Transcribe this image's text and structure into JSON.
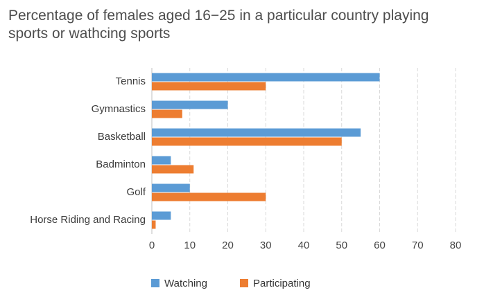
{
  "chart_data": {
    "type": "bar",
    "orientation": "horizontal",
    "title": "Percentage of females aged 16−25 in a particular country playing sports or wathcing sports",
    "categories": [
      "Tennis",
      "Gymnastics",
      "Basketball",
      "Badminton",
      "Golf",
      "Horse Riding and Racing"
    ],
    "series": [
      {
        "name": "Watching",
        "values": [
          60,
          20,
          55,
          5,
          10,
          5
        ],
        "color": "#5b9bd5"
      },
      {
        "name": "Participating",
        "values": [
          30,
          8,
          50,
          11,
          30,
          1
        ],
        "color": "#ed7d31"
      }
    ],
    "xlim": [
      0,
      80
    ],
    "xticks": [
      0,
      10,
      20,
      30,
      40,
      50,
      60,
      70,
      80
    ],
    "grid": true,
    "grid_color": "#d9d9d9",
    "legend_position": "bottom"
  }
}
